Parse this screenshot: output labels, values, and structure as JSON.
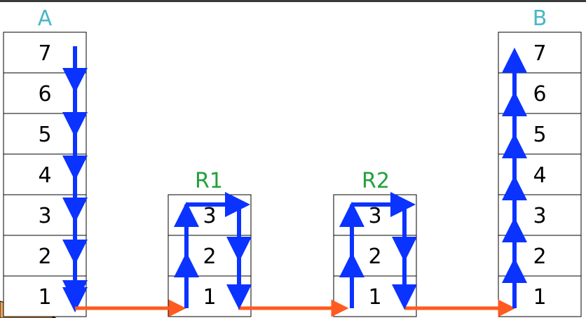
{
  "colors": {
    "end_host_title": "#4ab6c9",
    "router_title": "#21a03a",
    "vertical_arrow": "#0a33ff",
    "link_arrow": "#ff5a1f",
    "corner_fill": "#e8a35a"
  },
  "stacks": [
    {
      "id": "A",
      "title": "A",
      "kind": "host",
      "layers": [
        "7",
        "6",
        "5",
        "4",
        "3",
        "2",
        "1"
      ]
    },
    {
      "id": "R1",
      "title": "R1",
      "kind": "router",
      "layers": [
        "3",
        "2",
        "1"
      ]
    },
    {
      "id": "R2",
      "title": "R2",
      "kind": "router",
      "layers": [
        "3",
        "2",
        "1"
      ]
    },
    {
      "id": "B",
      "title": "B",
      "kind": "host",
      "layers": [
        "7",
        "6",
        "5",
        "4",
        "3",
        "2",
        "1"
      ]
    }
  ]
}
